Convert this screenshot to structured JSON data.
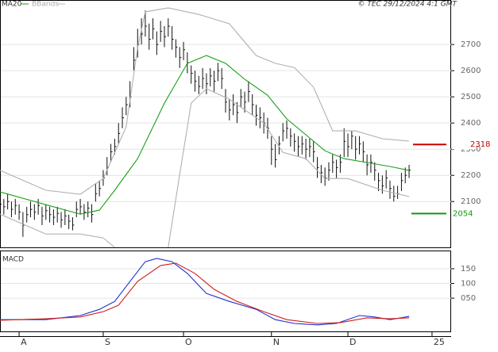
{
  "chart_data": {
    "type": "ohlc",
    "title": "© TEC 29/12/2024 4:1 GMT",
    "legend": [
      "MA20",
      "BBands"
    ],
    "xlim": [
      0,
      118
    ],
    "xticks": [
      {
        "value": 5,
        "label": "A"
      },
      {
        "value": 27,
        "label": "S"
      },
      {
        "value": 48,
        "label": "O"
      },
      {
        "value": 71,
        "label": "N"
      },
      {
        "value": 91,
        "label": "D"
      },
      {
        "value": 113,
        "label": "25"
      }
    ],
    "ylim": [
      1925,
      2870
    ],
    "yticks": [
      2100,
      2200,
      2300,
      2400,
      2500,
      2600,
      2700
    ],
    "grid": true,
    "close": [
      2090,
      2080,
      2100,
      2070,
      2085,
      2060,
      2010,
      2050,
      2070,
      2060,
      2085,
      2045,
      2065,
      2050,
      2040,
      2055,
      2030,
      2045,
      2025,
      2010,
      2070,
      2080,
      2060,
      2075,
      2050,
      2130,
      2150,
      2190,
      2230,
      2290,
      2310,
      2360,
      2420,
      2470,
      2500,
      2640,
      2700,
      2740,
      2770,
      2720,
      2760,
      2700,
      2750,
      2730,
      2770,
      2720,
      2690,
      2650,
      2680,
      2630,
      2590,
      2560,
      2540,
      2570,
      2550,
      2580,
      2560,
      2600,
      2570,
      2480,
      2450,
      2470,
      2440,
      2500,
      2480,
      2520,
      2470,
      2430,
      2420,
      2400,
      2380,
      2300,
      2260,
      2320,
      2370,
      2380,
      2350,
      2330,
      2310,
      2320,
      2300,
      2310,
      2290,
      2230,
      2210,
      2190,
      2220,
      2250,
      2230,
      2250,
      2330,
      2310,
      2350,
      2300,
      2320,
      2290,
      2240,
      2250,
      2220,
      2180,
      2160,
      2190,
      2150,
      2120,
      2130,
      2180,
      2200,
      2220
    ],
    "high": [
      2120,
      2110,
      2130,
      2100,
      2110,
      2090,
      2060,
      2080,
      2100,
      2090,
      2110,
      2080,
      2090,
      2080,
      2070,
      2080,
      2060,
      2070,
      2050,
      2040,
      2100,
      2110,
      2090,
      2100,
      2090,
      2170,
      2180,
      2220,
      2270,
      2320,
      2340,
      2400,
      2460,
      2500,
      2560,
      2690,
      2760,
      2800,
      2830,
      2780,
      2800,
      2750,
      2790,
      2770,
      2800,
      2770,
      2720,
      2690,
      2710,
      2670,
      2620,
      2600,
      2580,
      2610,
      2590,
      2610,
      2600,
      2630,
      2610,
      2530,
      2490,
      2510,
      2480,
      2530,
      2520,
      2560,
      2510,
      2470,
      2460,
      2440,
      2420,
      2350,
      2320,
      2350,
      2400,
      2410,
      2380,
      2360,
      2350,
      2350,
      2340,
      2340,
      2330,
      2270,
      2240,
      2230,
      2250,
      2280,
      2260,
      2280,
      2380,
      2360,
      2370,
      2350,
      2350,
      2330,
      2280,
      2280,
      2250,
      2210,
      2200,
      2220,
      2180,
      2160,
      2160,
      2210,
      2230,
      2240
    ],
    "low": [
      2060,
      2050,
      2070,
      2040,
      2050,
      2030,
      1965,
      2020,
      2040,
      2030,
      2050,
      2010,
      2030,
      2020,
      2010,
      2020,
      2000,
      2010,
      1995,
      1990,
      2040,
      2050,
      2030,
      2040,
      2020,
      2100,
      2120,
      2160,
      2200,
      2250,
      2280,
      2320,
      2380,
      2430,
      2460,
      2600,
      2650,
      2700,
      2730,
      2680,
      2720,
      2660,
      2710,
      2690,
      2730,
      2680,
      2650,
      2610,
      2640,
      2590,
      2550,
      2520,
      2510,
      2530,
      2510,
      2540,
      2520,
      2560,
      2530,
      2440,
      2410,
      2430,
      2400,
      2460,
      2440,
      2480,
      2430,
      2390,
      2380,
      2360,
      2340,
      2240,
      2230,
      2280,
      2330,
      2340,
      2310,
      2290,
      2270,
      2280,
      2260,
      2270,
      2250,
      2190,
      2170,
      2160,
      2180,
      2210,
      2190,
      2210,
      2270,
      2270,
      2300,
      2260,
      2280,
      2250,
      2200,
      2210,
      2180,
      2140,
      2130,
      2150,
      2110,
      2100,
      2110,
      2140,
      2170,
      2190
    ],
    "lines": [
      {
        "name": "MA20",
        "color": "#1a9e1a",
        "panel": "price",
        "x": [
          0,
          12,
          21,
          26,
          30,
          36,
          43,
          49,
          54,
          59,
          64,
          70,
          75,
          80,
          85,
          90,
          96,
          102,
          107
        ],
        "values": [
          2137,
          2088,
          2052,
          2067,
          2143,
          2264,
          2476,
          2628,
          2658,
          2628,
          2567,
          2506,
          2416,
          2355,
          2294,
          2264,
          2249,
          2234,
          2219
        ]
      },
      {
        "name": "BBands",
        "color": "#b0b0b0",
        "panel": "price",
        "x": [
          0,
          12,
          21,
          27,
          33,
          36,
          38,
          44,
          52,
          60,
          67,
          72,
          77,
          82,
          87,
          93,
          100,
          107
        ],
        "values": [
          2219,
          2143,
          2128,
          2188,
          2385,
          2688,
          2825,
          2840,
          2815,
          2779,
          2658,
          2628,
          2612,
          2537,
          2370,
          2370,
          2340,
          2331
        ]
      },
      {
        "color": "#b0b0b0",
        "panel": "price",
        "x": [
          0,
          12,
          21,
          27,
          30,
          38,
          44,
          47,
          50,
          54,
          60,
          69,
          74,
          80,
          85,
          91,
          100,
          107
        ],
        "values": [
          2052,
          1976,
          1976,
          1961,
          1925,
          null,
          1925,
          2203,
          2476,
          2531,
          2491,
          2400,
          2288,
          2264,
          2188,
          2188,
          2143,
          2119
        ]
      },
      {
        "color": "#1f2fd0",
        "panel": "macd",
        "x": [
          0,
          12,
          21,
          26,
          30,
          34,
          38,
          41,
          45,
          49,
          54,
          60,
          67,
          72,
          77,
          83,
          88,
          94,
          98,
          102,
          107
        ],
        "values": [
          -23,
          -23,
          -9,
          12,
          39,
          107,
          174,
          185,
          174,
          134,
          66,
          39,
          12,
          -23,
          -36,
          -41,
          -36,
          -9,
          -14,
          -23,
          -12
        ]
      },
      {
        "color": "#d01f1f",
        "panel": "macd",
        "x": [
          0,
          12,
          21,
          27,
          31,
          36,
          42,
          46,
          51,
          56,
          62,
          69,
          75,
          83,
          89,
          96,
          102,
          107
        ],
        "values": [
          -25,
          -20,
          -14,
          4,
          26,
          107,
          161,
          169,
          134,
          80,
          39,
          4,
          -23,
          -36,
          -33,
          -17,
          -20,
          -17
        ]
      }
    ],
    "levels": [
      {
        "value": 2318,
        "color": "#cc0000"
      },
      {
        "value": 2054,
        "color": "#119911"
      }
    ],
    "macd_title": "MACD",
    "macd_ylim": [
      -63,
      212
    ],
    "macd_yticks": [
      {
        "value": 50,
        "label": "050"
      },
      100,
      150
    ]
  }
}
